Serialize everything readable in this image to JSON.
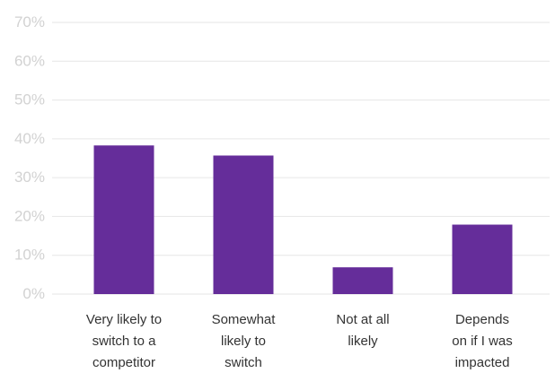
{
  "chart_data": {
    "type": "bar",
    "categories": [
      [
        "Very likely to",
        "switch to a",
        "competitor"
      ],
      [
        "Somewhat",
        "likely to",
        "switch"
      ],
      [
        "Not at all",
        "likely"
      ],
      [
        "Depends",
        "on if I was",
        "impacted"
      ]
    ],
    "values": [
      38.3,
      35.7,
      6.9,
      17.9
    ],
    "ylim": [
      0,
      70
    ],
    "yticks": [
      0,
      10,
      20,
      30,
      40,
      50,
      60,
      70
    ],
    "ytick_labels": [
      "0%",
      "10%",
      "20%",
      "30%",
      "40%",
      "50%",
      "60%",
      "70%"
    ],
    "grid": true,
    "colors": {
      "bar": "#652d9a",
      "grid": "#e6e6e6",
      "tick_text": "#d2d2d2",
      "category_text": "#333333"
    }
  }
}
